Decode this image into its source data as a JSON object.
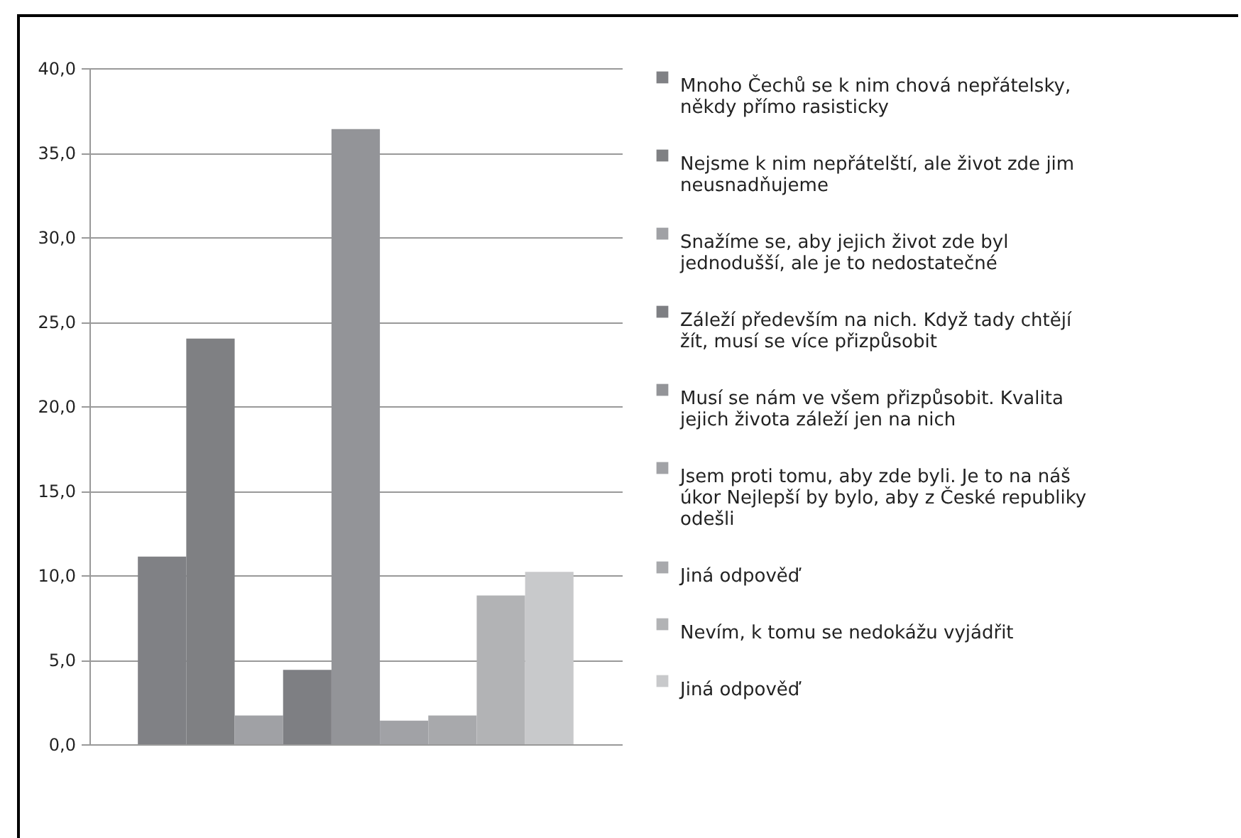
{
  "chart_data": {
    "type": "bar",
    "categories": [
      null
    ],
    "series": [
      {
        "name": "Mnoho Čechů se k nim chová nepřátelsky, někdy přímo rasisticky",
        "color": "#808185",
        "values": [
          11.1
        ]
      },
      {
        "name": "Nejsme k nim nepřátelští, ale život zde jim neusnadňujeme",
        "color": "#7f8083",
        "values": [
          24.0
        ]
      },
      {
        "name": "Snažíme se, aby jejich život zde byl jednodušší, ale je to nedostatečné",
        "color": "#a0a1a5",
        "values": [
          1.7
        ]
      },
      {
        "name": "Záleží především na nich. Když tady chtějí žít, musí se více přizpůsobit",
        "color": "#7e7f83",
        "values": [
          4.4
        ]
      },
      {
        "name": "Musí se nám ve všem přizpůsobit. Kvalita jejich života záleží jen na nich",
        "color": "#939498",
        "values": [
          36.4
        ]
      },
      {
        "name": "Jsem proti tomu, aby zde byli. Je to na náš úkor Nejlepší by bylo, aby z České republiky odešli",
        "color": "#a1a2a6",
        "values": [
          1.4
        ]
      },
      {
        "name": "Jiná odpověď",
        "color": "#a8a9ac",
        "values": [
          1.7
        ]
      },
      {
        "name": "Nevím, k tomu se nedokážu vyjádřit",
        "color": "#b2b3b5",
        "values": [
          8.8
        ]
      },
      {
        "name": "Jiná odpověď",
        "color": "#c8c9cb",
        "values": [
          10.2
        ]
      }
    ],
    "ylim": [
      0,
      40
    ],
    "yticks": [
      {
        "value": 0,
        "label": "0,0"
      },
      {
        "value": 5,
        "label": "5,0"
      },
      {
        "value": 10,
        "label": "10,0"
      },
      {
        "value": 15,
        "label": "15,0"
      },
      {
        "value": 20,
        "label": "20,0"
      },
      {
        "value": 25,
        "label": "25,0"
      },
      {
        "value": 30,
        "label": "30,0"
      },
      {
        "value": 35,
        "label": "35,0"
      },
      {
        "value": 40,
        "label": "40,0"
      }
    ],
    "grid": "y",
    "legend": "right",
    "tick_labels": "y"
  }
}
